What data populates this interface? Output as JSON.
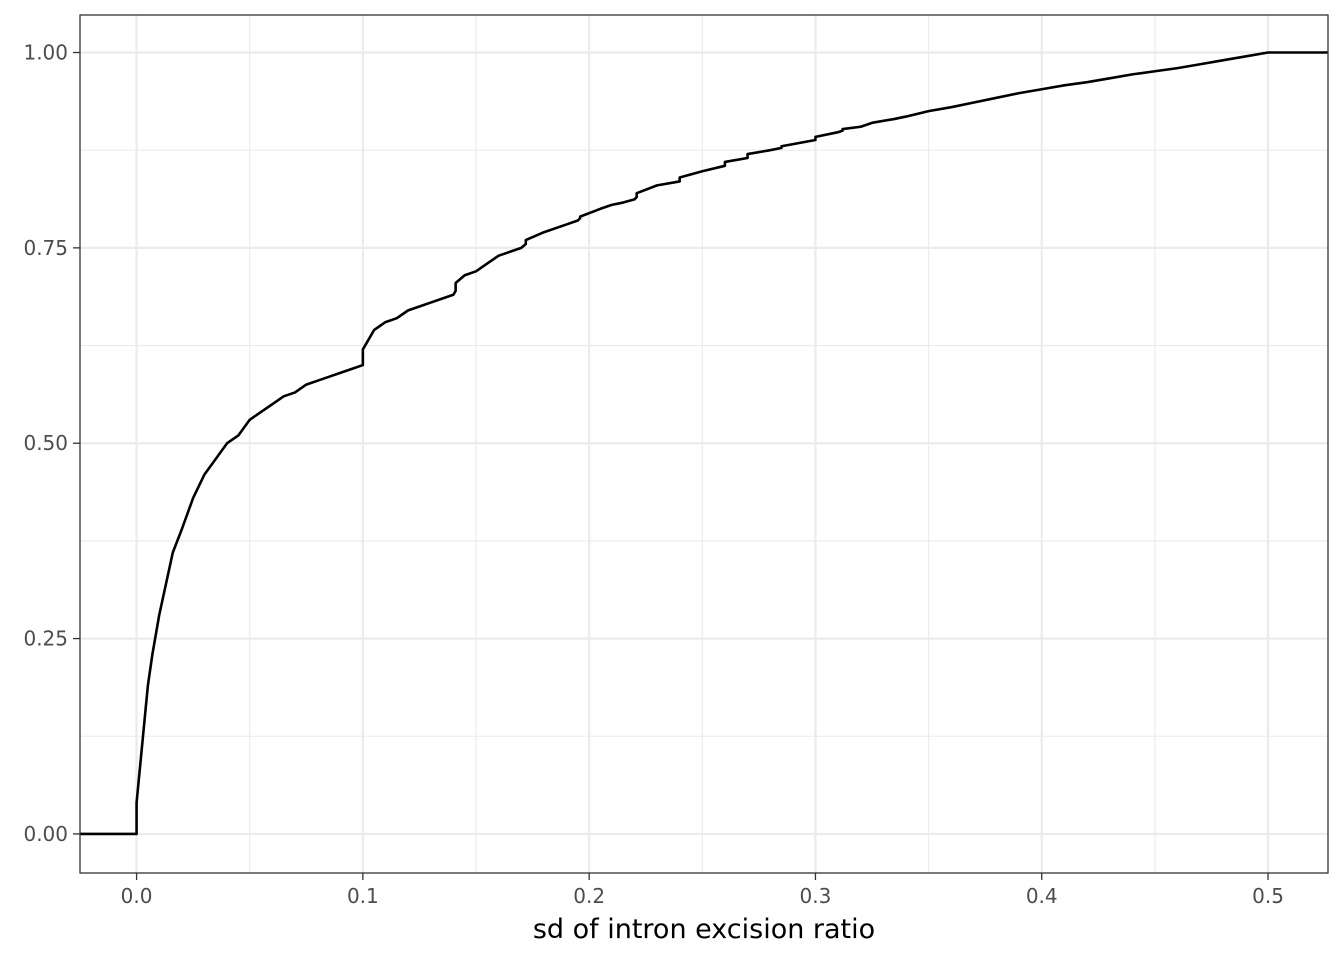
{
  "chart_data": {
    "type": "line",
    "subtype": "ecdf-step",
    "xlabel": "sd of intron excision ratio",
    "ylabel": "",
    "title": "",
    "xlim": [
      -0.025,
      0.5265
    ],
    "ylim": [
      -0.05,
      1.048
    ],
    "x_ticks": [
      0.0,
      0.1,
      0.2,
      0.3,
      0.4,
      0.5
    ],
    "x_tick_labels": [
      "0.0",
      "0.1",
      "0.2",
      "0.3",
      "0.4",
      "0.5"
    ],
    "y_ticks": [
      0.0,
      0.25,
      0.5,
      0.75,
      1.0
    ],
    "y_tick_labels": [
      "0.00",
      "0.25",
      "0.50",
      "0.75",
      "1.00"
    ],
    "grid": true,
    "line_color": "#000000",
    "series": [
      {
        "x": [
          -0.025,
          0.0,
          0.0,
          0.001,
          0.003,
          0.005,
          0.007,
          0.01,
          0.013,
          0.016,
          0.02,
          0.025,
          0.03,
          0.035,
          0.04,
          0.045,
          0.05,
          0.055,
          0.06,
          0.065,
          0.07,
          0.075,
          0.08,
          0.085,
          0.09,
          0.095,
          0.1,
          0.1,
          0.105,
          0.11,
          0.115,
          0.12,
          0.125,
          0.13,
          0.135,
          0.14,
          0.141,
          0.141,
          0.145,
          0.15,
          0.155,
          0.16,
          0.165,
          0.17,
          0.172,
          0.172,
          0.18,
          0.19,
          0.195,
          0.196,
          0.196,
          0.205,
          0.21,
          0.215,
          0.22,
          0.221,
          0.221,
          0.23,
          0.24,
          0.24,
          0.25,
          0.26,
          0.26,
          0.27,
          0.27,
          0.28,
          0.285,
          0.285,
          0.3,
          0.3,
          0.31,
          0.312,
          0.312,
          0.32,
          0.325,
          0.335,
          0.34,
          0.35,
          0.36,
          0.37,
          0.38,
          0.39,
          0.4,
          0.41,
          0.42,
          0.43,
          0.44,
          0.45,
          0.46,
          0.47,
          0.48,
          0.49,
          0.5,
          0.503,
          0.5265
        ],
        "y": [
          0.0,
          0.0,
          0.04,
          0.07,
          0.13,
          0.19,
          0.23,
          0.28,
          0.32,
          0.36,
          0.39,
          0.43,
          0.46,
          0.48,
          0.5,
          0.51,
          0.53,
          0.54,
          0.55,
          0.56,
          0.565,
          0.575,
          0.58,
          0.585,
          0.59,
          0.595,
          0.6,
          0.62,
          0.645,
          0.655,
          0.66,
          0.67,
          0.675,
          0.68,
          0.685,
          0.69,
          0.695,
          0.705,
          0.715,
          0.72,
          0.73,
          0.74,
          0.745,
          0.75,
          0.755,
          0.76,
          0.77,
          0.78,
          0.785,
          0.788,
          0.79,
          0.8,
          0.805,
          0.808,
          0.812,
          0.815,
          0.82,
          0.83,
          0.835,
          0.84,
          0.848,
          0.855,
          0.86,
          0.865,
          0.87,
          0.875,
          0.878,
          0.88,
          0.888,
          0.892,
          0.898,
          0.9,
          0.902,
          0.905,
          0.91,
          0.915,
          0.918,
          0.925,
          0.93,
          0.936,
          0.942,
          0.948,
          0.953,
          0.958,
          0.962,
          0.967,
          0.972,
          0.976,
          0.98,
          0.985,
          0.99,
          0.995,
          1.0,
          1.0,
          1.0
        ]
      }
    ]
  }
}
